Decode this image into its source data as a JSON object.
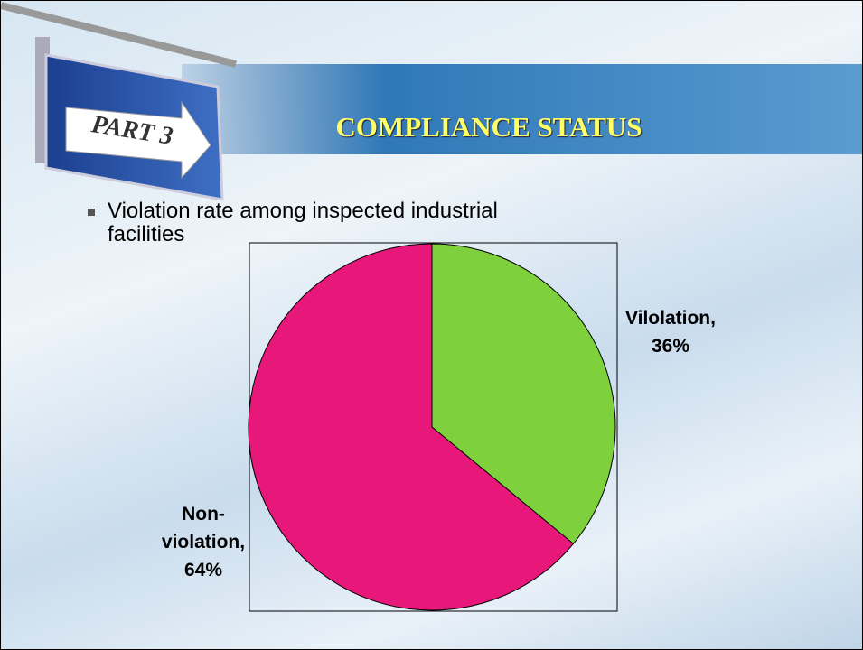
{
  "header": {
    "part": "PART 3",
    "title": "COMPLIANCE STATUS"
  },
  "bullet": "Violation rate among inspected industrial facilities",
  "chart_data": {
    "type": "pie",
    "categories": [
      "Vilolation,",
      "Non-violation,"
    ],
    "values": [
      36,
      64
    ],
    "value_labels": [
      "36%",
      "64%"
    ],
    "colors": [
      "#7ed13c",
      "#e8177a"
    ]
  }
}
